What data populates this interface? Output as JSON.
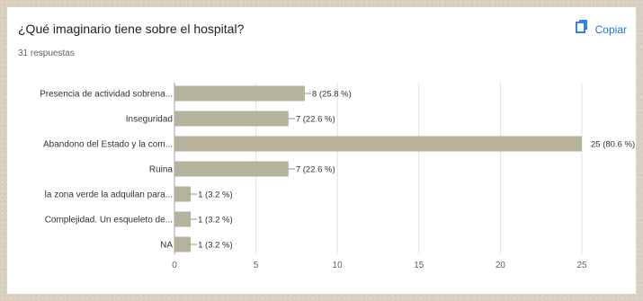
{
  "question": {
    "title": "¿Qué imaginario tiene sobre el hospital?",
    "responses": "31 respuestas"
  },
  "toolbar": {
    "copy_label": "Copiar",
    "copy_icon": "copy-icon",
    "accent_color": "#1a73e8"
  },
  "chart_data": {
    "type": "bar",
    "orientation": "horizontal",
    "title": "¿Qué imaginario tiene sobre el hospital?",
    "categories": [
      "Presencia de actividad sobrena...",
      "Inseguridad",
      "Abandono del Estado y la com...",
      "Ruina",
      "la zona verde la adquilan para...",
      "Complejidad. Un esqueleto de...",
      "NA"
    ],
    "values": [
      8,
      7,
      25,
      7,
      1,
      1,
      1
    ],
    "value_labels": [
      "8 (25.8 %)",
      "7 (22.6 %)",
      "25 (80.6 %)",
      "7 (22.6 %)",
      "1 (3.2 %)",
      "1 (3.2 %)",
      "1 (3.2 %)"
    ],
    "xlim": [
      0,
      25
    ],
    "xticks": [
      0,
      5,
      10,
      15,
      20,
      25
    ],
    "bar_color": "#b6b39c",
    "grid": true,
    "xlabel": "",
    "ylabel": ""
  }
}
